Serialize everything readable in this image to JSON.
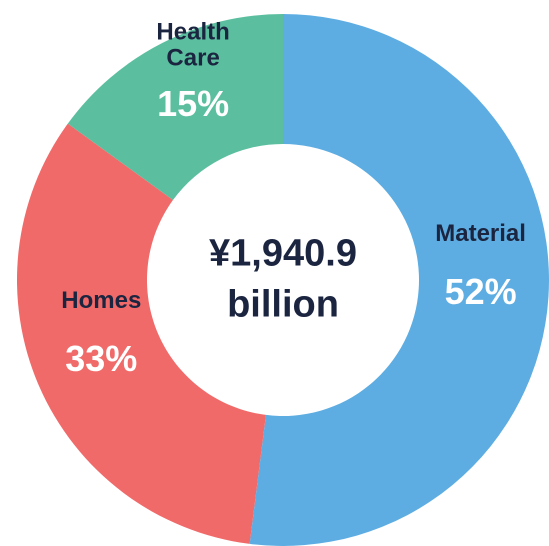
{
  "chart_data": {
    "type": "donut",
    "center_label": "¥1,940.9 billion",
    "categories": [
      "Material",
      "Homes",
      "Health Care"
    ],
    "values": [
      52,
      33,
      15
    ],
    "value_labels": [
      "52%",
      "33%",
      "15%"
    ],
    "colors": [
      "#5dade2",
      "#f06a6a",
      "#5bbf9f"
    ]
  }
}
